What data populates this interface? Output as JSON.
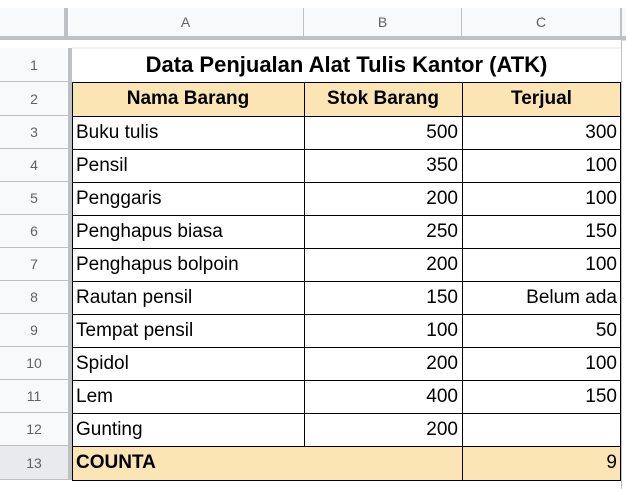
{
  "columns": [
    "A",
    "B",
    "C"
  ],
  "rows": [
    "1",
    "2",
    "3",
    "4",
    "5",
    "6",
    "7",
    "8",
    "9",
    "10",
    "11",
    "12",
    "13"
  ],
  "title": "Data Penjualan Alat Tulis Kantor (ATK)",
  "headers": {
    "name": "Nama Barang",
    "stock": "Stok Barang",
    "sold": "Terjual"
  },
  "items": [
    {
      "name": "Buku tulis",
      "stock": "500",
      "sold": "300"
    },
    {
      "name": "Pensil",
      "stock": "350",
      "sold": "100"
    },
    {
      "name": "Penggaris",
      "stock": "200",
      "sold": "100"
    },
    {
      "name": "Penghapus biasa",
      "stock": "250",
      "sold": "150"
    },
    {
      "name": "Penghapus bolpoin",
      "stock": "200",
      "sold": "100"
    },
    {
      "name": "Rautan pensil",
      "stock": "150",
      "sold": "Belum ada"
    },
    {
      "name": "Tempat pensil",
      "stock": "100",
      "sold": "50"
    },
    {
      "name": "Spidol",
      "stock": "200",
      "sold": "100"
    },
    {
      "name": "Lem",
      "stock": "400",
      "sold": "150"
    },
    {
      "name": "Gunting",
      "stock": "200",
      "sold": ""
    }
  ],
  "footer": {
    "label": "COUNTA",
    "value": "9"
  },
  "colors": {
    "header_fill": "#fce5b4",
    "grid": "#c0c0c0",
    "border": "#000000"
  }
}
